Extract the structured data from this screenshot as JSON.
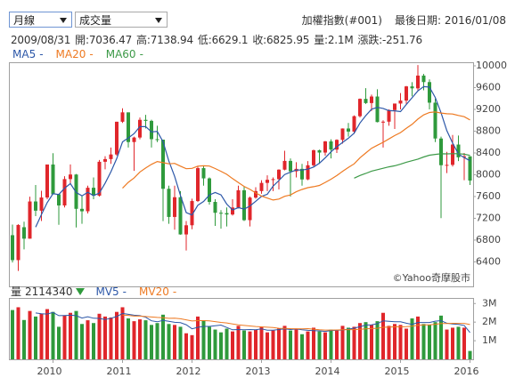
{
  "controls": {
    "period": "月線",
    "indicator": "成交量"
  },
  "header": {
    "index_name": "加權指數(#001)",
    "last_date": "最後日期: 2016/01/08",
    "info": [
      "2009/08/31",
      "開:7036.47",
      "高:7138.94",
      "低:6629.1",
      "收:6825.95",
      "量:2.1M",
      "漲跌:-251.76"
    ]
  },
  "chart_data": [
    {
      "type": "candlestick",
      "watermark": "©Yahoo奇摩股市",
      "up_color": "#e0262b",
      "down_color": "#2f9a3c",
      "grid": false,
      "categories": [
        null,
        null,
        null,
        null,
        null,
        null,
        null,
        "2010",
        null,
        null,
        null,
        null,
        null,
        null,
        null,
        null,
        null,
        null,
        null,
        "2011",
        null,
        null,
        null,
        null,
        null,
        null,
        null,
        null,
        null,
        null,
        null,
        "2012",
        null,
        null,
        null,
        null,
        null,
        null,
        null,
        null,
        null,
        null,
        null,
        "2013",
        null,
        null,
        null,
        null,
        null,
        null,
        null,
        null,
        null,
        null,
        null,
        "2014",
        null,
        null,
        null,
        null,
        null,
        null,
        null,
        null,
        null,
        null,
        null,
        "2015",
        null,
        null,
        null,
        null,
        null,
        null,
        null,
        null,
        null,
        null,
        null,
        "2016"
      ],
      "ylim": [
        5950,
        10065
      ],
      "yticks": [
        6400,
        6800,
        7200,
        7600,
        8000,
        8400,
        8800,
        9200,
        9600,
        10000
      ],
      "ohlc": [
        [
          6890,
          7084,
          6389,
          6432
        ],
        [
          6432,
          7090,
          6234,
          7078
        ],
        [
          7036.47,
          7138.94,
          6629.1,
          6825.95
        ],
        [
          6826,
          7597,
          6826,
          7509
        ],
        [
          7509,
          7811,
          7241,
          7340
        ],
        [
          7340,
          7706,
          7150,
          7582
        ],
        [
          7582,
          8188,
          7550,
          8188
        ],
        [
          8188,
          8395,
          7640,
          7640
        ],
        [
          7640,
          7650,
          7080,
          7436
        ],
        [
          7436,
          7973,
          7400,
          7920
        ],
        [
          7920,
          8190,
          7840,
          8004
        ],
        [
          8004,
          8013,
          7032,
          7374
        ],
        [
          7374,
          7620,
          7100,
          7329
        ],
        [
          7329,
          7800,
          7290,
          7761
        ],
        [
          7761,
          7950,
          7550,
          7616
        ],
        [
          7616,
          8270,
          7600,
          8238
        ],
        [
          8238,
          8340,
          8100,
          8287
        ],
        [
          8287,
          8500,
          8200,
          8372
        ],
        [
          8372,
          8973,
          8350,
          8973
        ],
        [
          8973,
          9220,
          8950,
          9145
        ],
        [
          9145,
          9145,
          8500,
          8600
        ],
        [
          8600,
          8700,
          8070,
          8683
        ],
        [
          8683,
          9050,
          8650,
          9008
        ],
        [
          9008,
          9100,
          8850,
          8989
        ],
        [
          8989,
          9010,
          8500,
          8653
        ],
        [
          8653,
          8900,
          8600,
          8644
        ],
        [
          8644,
          8644,
          7148,
          7742
        ],
        [
          7742,
          7800,
          7100,
          7225
        ],
        [
          7225,
          7800,
          6990,
          7587
        ],
        [
          7587,
          7700,
          6900,
          6904
        ],
        [
          6904,
          7150,
          6609,
          7072
        ],
        [
          7072,
          7560,
          7000,
          7517
        ],
        [
          7517,
          8150,
          7500,
          8121
        ],
        [
          8121,
          8170,
          7800,
          7933
        ],
        [
          7933,
          7950,
          7450,
          7501
        ],
        [
          7501,
          7550,
          7060,
          7301
        ],
        [
          7301,
          7350,
          7010,
          7296
        ],
        [
          7296,
          7400,
          7050,
          7270
        ],
        [
          7270,
          7550,
          7250,
          7398
        ],
        [
          7398,
          7800,
          7380,
          7715
        ],
        [
          7715,
          7780,
          7150,
          7166
        ],
        [
          7166,
          7600,
          7050,
          7580
        ],
        [
          7580,
          7770,
          7560,
          7700
        ],
        [
          7700,
          7900,
          7650,
          7850
        ],
        [
          7850,
          7990,
          7700,
          7907
        ],
        [
          7907,
          7950,
          7700,
          7919
        ],
        [
          7919,
          8100,
          7730,
          8093
        ],
        [
          8093,
          8440,
          8080,
          8254
        ],
        [
          8254,
          8300,
          7600,
          8062
        ],
        [
          8062,
          8230,
          7950,
          8108
        ],
        [
          8108,
          8200,
          7800,
          7914
        ],
        [
          7914,
          8250,
          7900,
          8174
        ],
        [
          8174,
          8460,
          8150,
          8450
        ],
        [
          8450,
          8460,
          8200,
          8407
        ],
        [
          8407,
          8620,
          8350,
          8612
        ],
        [
          8612,
          8650,
          8300,
          8462
        ],
        [
          8462,
          8650,
          8400,
          8640
        ],
        [
          8640,
          8850,
          8570,
          8849
        ],
        [
          8849,
          8950,
          8700,
          8792
        ],
        [
          8792,
          9090,
          8750,
          9075
        ],
        [
          9075,
          9400,
          9050,
          9393
        ],
        [
          9393,
          9590,
          9300,
          9316
        ],
        [
          9316,
          9470,
          9170,
          9436
        ],
        [
          9436,
          9570,
          8960,
          8967
        ],
        [
          8967,
          9000,
          8500,
          8974
        ],
        [
          8974,
          9200,
          8900,
          9187
        ],
        [
          9187,
          9300,
          8840,
          9307
        ],
        [
          9307,
          9500,
          9200,
          9362
        ],
        [
          9362,
          9630,
          9300,
          9622
        ],
        [
          9622,
          9700,
          9440,
          9586
        ],
        [
          9586,
          10014,
          9550,
          9820
        ],
        [
          9820,
          9850,
          9550,
          9701
        ],
        [
          9701,
          9750,
          9200,
          9323
        ],
        [
          9323,
          9400,
          8600,
          8665
        ],
        [
          8665,
          8700,
          7203,
          8175
        ],
        [
          8175,
          8420,
          8030,
          8181
        ],
        [
          8181,
          8730,
          8150,
          8554
        ],
        [
          8554,
          8720,
          8250,
          8320
        ],
        [
          8320,
          8400,
          7900,
          8338
        ],
        [
          8338,
          8338,
          7811,
          7893
        ]
      ],
      "series": [
        {
          "name": "MA5",
          "readout": "-",
          "color": "#2c57a8",
          "values": [
            null,
            null,
            null,
            null,
            7037,
            7267,
            7489,
            7652,
            7637,
            7753,
            7838,
            7675,
            7613,
            7678,
            7617,
            7664,
            7846,
            8055,
            8297,
            8603,
            8675,
            8755,
            8882,
            8885,
            8787,
            8795,
            8607,
            8251,
            7970,
            7620,
            7306,
            7261,
            7440,
            7509,
            7629,
            7675,
            7630,
            7460,
            7353,
            7396,
            7369,
            7426,
            7512,
            7602,
            7641,
            7791,
            7894,
            8005,
            8047,
            8087,
            8086,
            8102,
            8142,
            8211,
            8311,
            8421,
            8514,
            8594,
            8671,
            8764,
            8950,
            9085,
            9202,
            9237,
            9217,
            9176,
            9174,
            9159,
            9290,
            9413,
            9539,
            9618,
            9610,
            9419,
            9137,
            8809,
            8580,
            8379,
            8314,
            8257
          ]
        },
        {
          "name": "MA20",
          "readout": "-",
          "color": "#ee7a22",
          "values": [
            null,
            null,
            null,
            null,
            null,
            null,
            null,
            null,
            null,
            null,
            null,
            null,
            null,
            null,
            null,
            null,
            null,
            null,
            null,
            7753,
            7861,
            7941,
            8050,
            8124,
            8190,
            8243,
            8221,
            8200,
            8208,
            8157,
            8110,
            8117,
            8157,
            8165,
            8160,
            8113,
            8063,
            8008,
            7929,
            7858,
            7786,
            7731,
            7666,
            7609,
            7571,
            7535,
            7553,
            7604,
            7628,
            7688,
            7730,
            7763,
            7780,
            7803,
            7859,
            7917,
            7984,
            8063,
            8133,
            8201,
            8312,
            8399,
            8486,
            8542,
            8595,
            8658,
            8719,
            8774,
            8852,
            8926,
            9022,
            9098,
            9142,
            9154,
            9133,
            9119,
            9114,
            9088,
            9065,
            9006
          ]
        },
        {
          "name": "MA60",
          "readout": "-",
          "color": "#3d9a48",
          "values": [
            null,
            null,
            null,
            null,
            null,
            null,
            null,
            null,
            null,
            null,
            null,
            null,
            null,
            null,
            null,
            null,
            null,
            null,
            null,
            null,
            null,
            null,
            null,
            null,
            null,
            null,
            null,
            null,
            null,
            null,
            null,
            null,
            null,
            null,
            null,
            null,
            null,
            null,
            null,
            null,
            null,
            null,
            null,
            null,
            null,
            null,
            null,
            null,
            null,
            null,
            null,
            null,
            null,
            null,
            null,
            null,
            null,
            null,
            null,
            7937,
            7986,
            8024,
            8067,
            8092,
            8119,
            8145,
            8164,
            8193,
            8229,
            8257,
            8287,
            8326,
            8359,
            8374,
            8384,
            8383,
            8387,
            8386,
            8376,
            8355
          ]
        }
      ]
    },
    {
      "type": "bar",
      "title": "量",
      "readout": "2114340",
      "ylim": [
        0,
        3300000
      ],
      "yticks": [
        {
          "value": 1000000,
          "label": "1M"
        },
        {
          "value": 2000000,
          "label": "2M"
        },
        {
          "value": 3000000,
          "label": "3M"
        }
      ],
      "values": [
        2650000,
        2800000,
        2114340,
        2600000,
        2300000,
        2450000,
        2700000,
        2550000,
        1750000,
        2350000,
        2500000,
        2600000,
        1900000,
        2100000,
        1950000,
        2450000,
        2300000,
        2250000,
        2550000,
        2800000,
        2200000,
        2050000,
        2150000,
        2100000,
        1850000,
        1950000,
        2400000,
        1900000,
        1850000,
        1750000,
        1400000,
        1300000,
        2300000,
        2100000,
        1750000,
        1600000,
        1450000,
        1650000,
        1500000,
        1800000,
        1550000,
        1500000,
        1600000,
        1750000,
        1450000,
        1550000,
        1650000,
        1800000,
        1550000,
        1600000,
        1350000,
        1500000,
        1700000,
        1500000,
        1450000,
        1600000,
        1550000,
        1800000,
        1700000,
        1750000,
        1950000,
        2000000,
        1850000,
        2050000,
        2500000,
        1800000,
        1900000,
        1850000,
        1650000,
        2200000,
        2300000,
        1900000,
        1850000,
        2000000,
        2350000,
        1600000,
        1700000,
        1750000,
        1700000,
        450000
      ],
      "series": [
        {
          "name": "MV5",
          "readout": "-",
          "color": "#2c57a8",
          "values": [
            null,
            null,
            null,
            null,
            2493000,
            2453000,
            2433000,
            2520000,
            2350000,
            2360000,
            2370000,
            2350000,
            2220000,
            2290000,
            2210000,
            2200000,
            2140000,
            2210000,
            2300000,
            2470000,
            2420000,
            2370000,
            2350000,
            2260000,
            2070000,
            2020000,
            2090000,
            2040000,
            1990000,
            1970000,
            1860000,
            1640000,
            1720000,
            1770000,
            1770000,
            1810000,
            1840000,
            1710000,
            1590000,
            1600000,
            1590000,
            1600000,
            1590000,
            1640000,
            1570000,
            1570000,
            1600000,
            1640000,
            1600000,
            1630000,
            1590000,
            1560000,
            1540000,
            1530000,
            1500000,
            1550000,
            1560000,
            1580000,
            1620000,
            1680000,
            1750000,
            1840000,
            1850000,
            1920000,
            2070000,
            2040000,
            2020000,
            2020000,
            1940000,
            1880000,
            1980000,
            1980000,
            1980000,
            2050000,
            2080000,
            1940000,
            1900000,
            1880000,
            1820000,
            1440000
          ]
        },
        {
          "name": "MV20",
          "readout": "-",
          "color": "#ee7a22",
          "values": [
            null,
            null,
            null,
            null,
            null,
            null,
            null,
            null,
            null,
            null,
            null,
            null,
            null,
            null,
            null,
            null,
            null,
            null,
            null,
            2383000,
            2361000,
            2323000,
            2325000,
            2300000,
            2278000,
            2253000,
            2238000,
            2205000,
            2210000,
            2180000,
            2125000,
            2060000,
            2080000,
            2080000,
            2070000,
            2028000,
            1985000,
            1955000,
            1903000,
            1853000,
            1820000,
            1793000,
            1765000,
            1748000,
            1728000,
            1708000,
            1670000,
            1665000,
            1650000,
            1643000,
            1640000,
            1650000,
            1620000,
            1590000,
            1575000,
            1575000,
            1580000,
            1588000,
            1598000,
            1595000,
            1615000,
            1640000,
            1653000,
            1668000,
            1720000,
            1733000,
            1745000,
            1748000,
            1753000,
            1783000,
            1830000,
            1850000,
            1858000,
            1883000,
            1928000,
            1928000,
            1935000,
            1933000,
            1933000,
            1868000
          ]
        }
      ]
    }
  ]
}
